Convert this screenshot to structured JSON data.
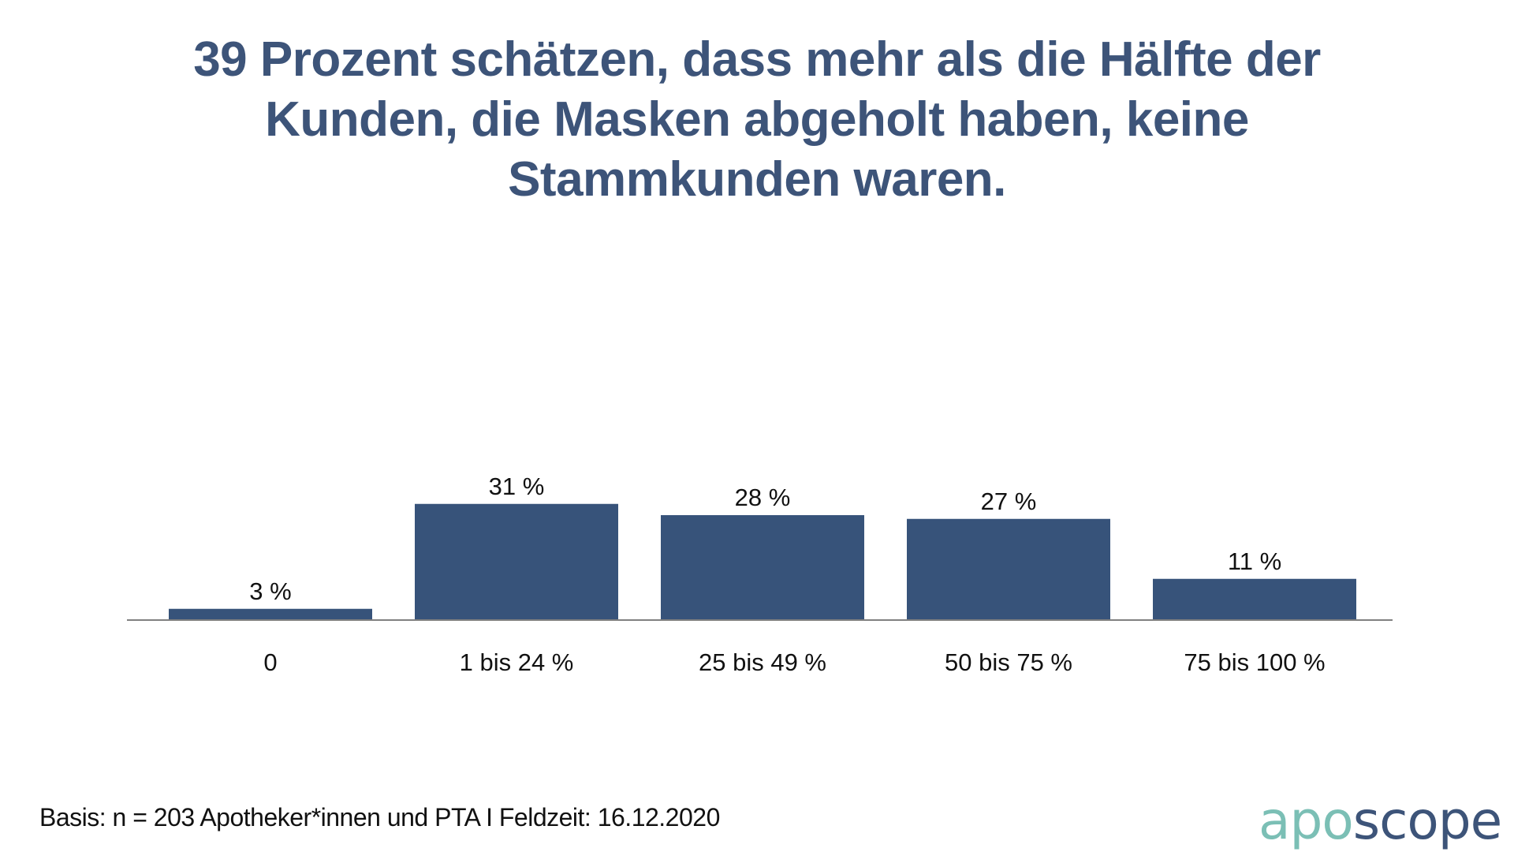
{
  "title_lines": [
    "39 Prozent schätzen, dass mehr als die Hälfte der",
    "Kunden, die Masken abgeholt haben, keine",
    "Stammkunden waren."
  ],
  "footer": "Basis: n = 203 Apotheker*innen und PTA I Feldzeit: 16.12.2020",
  "logo": {
    "part1": "apo",
    "part2": "scope"
  },
  "colors": {
    "bar": "#37537a",
    "title": "#3d5479",
    "logo_accent": "#7bbfb5",
    "axis": "#808080"
  },
  "chart_data": {
    "type": "bar",
    "title": "39 Prozent schätzen, dass mehr als die Hälfte der Kunden, die Masken abgeholt haben, keine Stammkunden waren.",
    "categories": [
      "0",
      "1 bis 24 %",
      "25 bis 49 %",
      "50 bis 75 %",
      "75 bis 100 %"
    ],
    "values": [
      3,
      31,
      28,
      27,
      11
    ],
    "value_labels": [
      "3 %",
      "31 %",
      "28 %",
      "27 %",
      "11 %"
    ],
    "xlabel": "",
    "ylabel": "",
    "unit": "%",
    "ylim": [
      0,
      31
    ],
    "grid": false,
    "legend": "none"
  }
}
